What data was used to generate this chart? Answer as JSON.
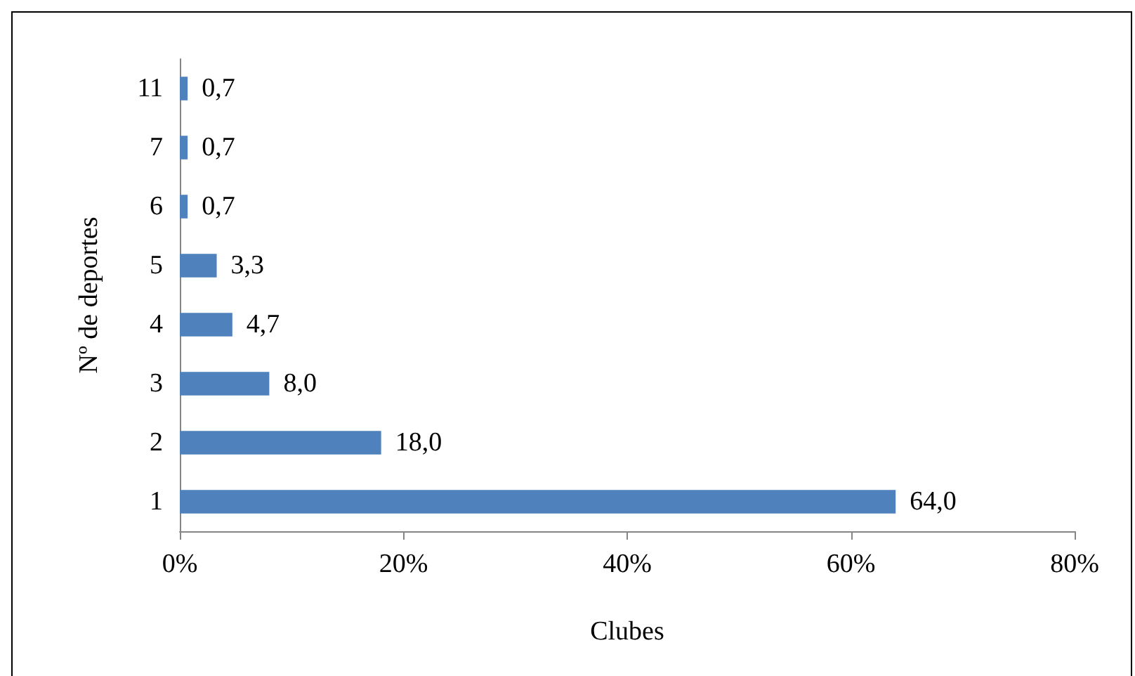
{
  "chart_data": {
    "type": "bar",
    "orientation": "horizontal",
    "xlabel": "Clubes",
    "ylabel": "Nº de deportes",
    "categories": [
      "11",
      "7",
      "6",
      "5",
      "4",
      "3",
      "2",
      "1"
    ],
    "values": [
      0.7,
      0.7,
      0.7,
      3.3,
      4.7,
      8.0,
      18.0,
      64.0
    ],
    "value_labels": [
      "0,7",
      "0,7",
      "0,7",
      "3,3",
      "4,7",
      "8,0",
      "18,0",
      "64,0"
    ],
    "color": "#4f81bd",
    "xlim": [
      0,
      80
    ],
    "xticks": [
      {
        "value": 0,
        "label": "0%"
      },
      {
        "value": 20,
        "label": "20%"
      },
      {
        "value": 40,
        "label": "40%"
      },
      {
        "value": 60,
        "label": "60%"
      },
      {
        "value": 80,
        "label": "80%"
      }
    ],
    "grid": false
  }
}
